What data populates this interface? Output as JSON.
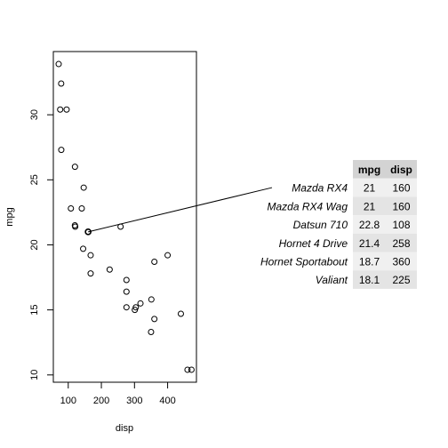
{
  "chart_data": {
    "type": "scatter",
    "xlabel": "disp",
    "ylabel": "mpg",
    "xlim": [
      55,
      487
    ],
    "ylim": [
      9.44,
      34.86
    ],
    "xticks": [
      100,
      200,
      300,
      400
    ],
    "yticks": [
      10,
      15,
      20,
      25,
      30
    ],
    "points": [
      {
        "x": 160,
        "y": 21
      },
      {
        "x": 160,
        "y": 21
      },
      {
        "x": 108,
        "y": 22.8
      },
      {
        "x": 258,
        "y": 21.4
      },
      {
        "x": 360,
        "y": 18.7
      },
      {
        "x": 225,
        "y": 18.1
      },
      {
        "x": 360,
        "y": 14.3
      },
      {
        "x": 146.7,
        "y": 24.4
      },
      {
        "x": 140.8,
        "y": 22.8
      },
      {
        "x": 167.6,
        "y": 19.2
      },
      {
        "x": 167.6,
        "y": 17.8
      },
      {
        "x": 275.8,
        "y": 16.4
      },
      {
        "x": 275.8,
        "y": 17.3
      },
      {
        "x": 275.8,
        "y": 15.2
      },
      {
        "x": 472,
        "y": 10.4
      },
      {
        "x": 460,
        "y": 10.4
      },
      {
        "x": 440,
        "y": 14.7
      },
      {
        "x": 78.7,
        "y": 32.4
      },
      {
        "x": 75.7,
        "y": 30.4
      },
      {
        "x": 71.1,
        "y": 33.9
      },
      {
        "x": 120.1,
        "y": 21.5
      },
      {
        "x": 318,
        "y": 15.5
      },
      {
        "x": 304,
        "y": 15.2
      },
      {
        "x": 350,
        "y": 13.3
      },
      {
        "x": 400,
        "y": 19.2
      },
      {
        "x": 79,
        "y": 27.3
      },
      {
        "x": 120.3,
        "y": 26
      },
      {
        "x": 95.1,
        "y": 30.4
      },
      {
        "x": 351,
        "y": 15.8
      },
      {
        "x": 145,
        "y": 19.7
      },
      {
        "x": 301,
        "y": 15
      },
      {
        "x": 121,
        "y": 21.4
      }
    ],
    "highlight": {
      "x": 160,
      "y": 21
    },
    "table": {
      "columns": [
        "mpg",
        "disp"
      ],
      "rows": [
        {
          "name": "Mazda RX4",
          "values": [
            "21",
            "160"
          ]
        },
        {
          "name": "Mazda RX4 Wag",
          "values": [
            "21",
            "160"
          ]
        },
        {
          "name": "Datsun 710",
          "values": [
            "22.8",
            "108"
          ]
        },
        {
          "name": "Hornet 4 Drive",
          "values": [
            "21.4",
            "258"
          ]
        },
        {
          "name": "Hornet Sportabout",
          "values": [
            "18.7",
            "360"
          ]
        },
        {
          "name": "Valiant",
          "values": [
            "18.1",
            "225"
          ]
        }
      ]
    },
    "colors": {
      "header_bg": "#d3d3d3",
      "row_bg_a": "#f0f0f0",
      "row_bg_b": "#e4e4e4",
      "marker": "#000000"
    }
  }
}
